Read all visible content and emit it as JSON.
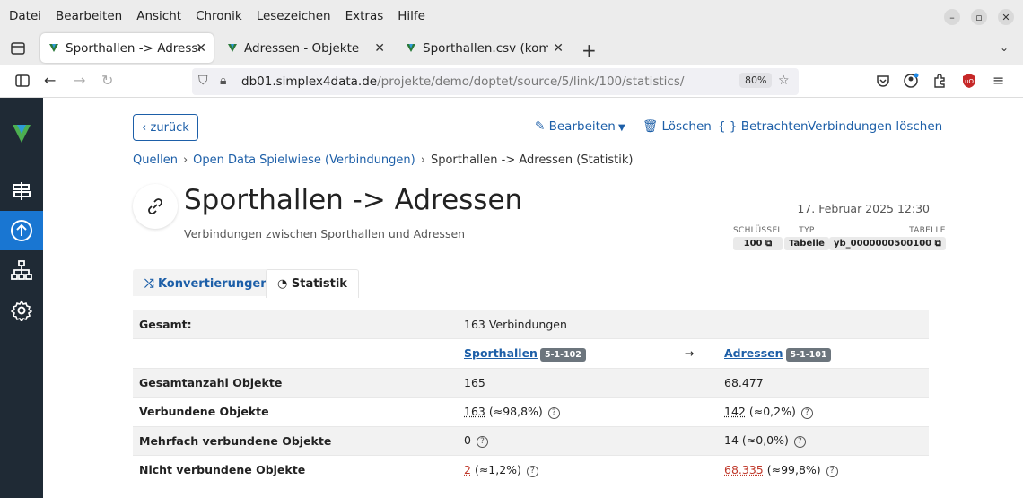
{
  "menu": [
    "Datei",
    "Bearbeiten",
    "Ansicht",
    "Chronik",
    "Lesezeichen",
    "Extras",
    "Hilfe"
  ],
  "browser_tabs": [
    {
      "title": "Sporthallen -> Adressen -",
      "active": true
    },
    {
      "title": "Adressen - Objekte",
      "active": false
    },
    {
      "title": "Sporthallen.csv (komplett",
      "active": false
    }
  ],
  "url": {
    "host": "db01.simplex4data.de",
    "path": "/projekte/demo/doptet/source/5/link/100/statistics/",
    "zoom": "80%"
  },
  "actions": {
    "back": "zurück",
    "edit": "Bearbeiten",
    "delete": "Löschen",
    "view": "Betrachten",
    "delete_links": "Verbindungen löschen"
  },
  "breadcrumb": [
    "Quellen",
    "Open Data Spielwiese (Verbindungen)",
    "Sporthallen -> Adressen (Statistik)"
  ],
  "header": {
    "title": "Sporthallen -> Adressen",
    "subtitle": "Verbindungen zwischen Sporthallen und Adressen",
    "date": "17. Februar 2025 12:30"
  },
  "meta": {
    "key_label": "SCHLÜSSEL",
    "key": "100",
    "type_label": "TYP",
    "type": "Tabelle",
    "table_label": "TABELLE",
    "table": "yb_0000000500100"
  },
  "content_tabs": {
    "conversions": "Konvertierungen",
    "statistics": "Statistik"
  },
  "stats": {
    "total_label": "Gesamt:",
    "total_value": "163 Verbindungen",
    "left": {
      "name": "Sporthallen",
      "badge": "5-1-102"
    },
    "right": {
      "name": "Adressen",
      "badge": "5-1-101"
    },
    "arrow": "→",
    "rows": [
      {
        "label": "Gesamtanzahl Objekte",
        "left": "165",
        "right": "68.477"
      },
      {
        "label": "Verbundene Objekte",
        "left_num": "163",
        "left_pct": "(≈98,8%)",
        "right_num": "142",
        "right_pct": "(≈0,2%)"
      },
      {
        "label": "Mehrfach verbundene Objekte",
        "left_num": "0",
        "right_num": "14",
        "right_pct": "(≈0,0%)"
      },
      {
        "label": "Nicht verbundene Objekte",
        "left_num": "2",
        "left_pct": "(≈1,2%)",
        "right_num": "68.335",
        "right_pct": "(≈99,8%)"
      }
    ]
  }
}
